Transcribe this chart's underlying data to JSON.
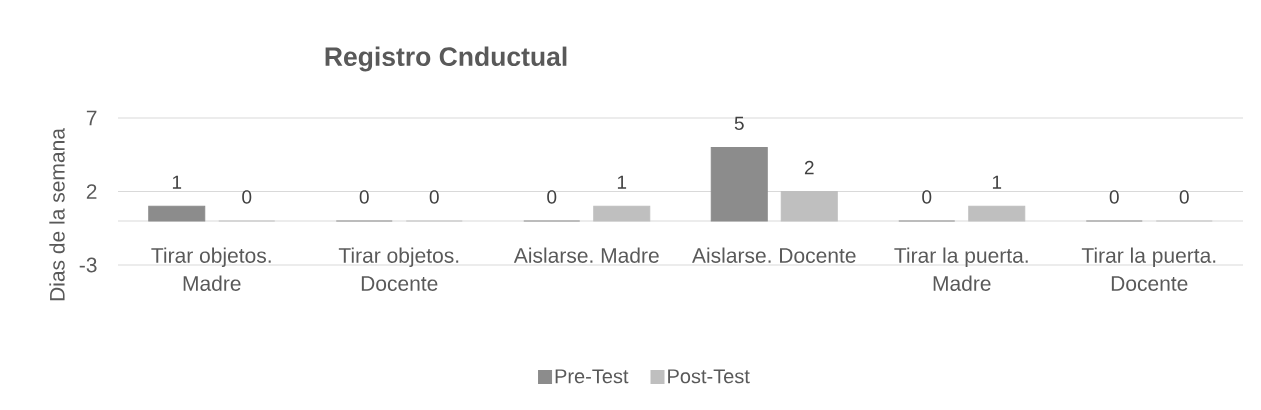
{
  "chart_data": {
    "type": "bar",
    "title": "Registro Cnductual",
    "ylabel": "Dias de la semana",
    "categories": [
      "Tirar objetos. Madre",
      "Tirar objetos. Docente",
      "Aislarse. Madre",
      "Aislarse. Docente",
      "Tirar la puerta. Madre",
      "Tirar la puerta. Docente"
    ],
    "series": [
      {
        "name": "Pre-Test",
        "color": "#8c8c8c",
        "values": [
          1,
          0,
          0,
          5,
          0,
          0
        ]
      },
      {
        "name": "Post-Test",
        "color": "#bfbfbf",
        "values": [
          0,
          0,
          1,
          2,
          1,
          0
        ]
      }
    ],
    "ylim": [
      -3,
      7
    ],
    "yticks": [
      -3,
      2,
      7
    ],
    "grid": "y",
    "legend": "bottom",
    "data_labels": true
  }
}
